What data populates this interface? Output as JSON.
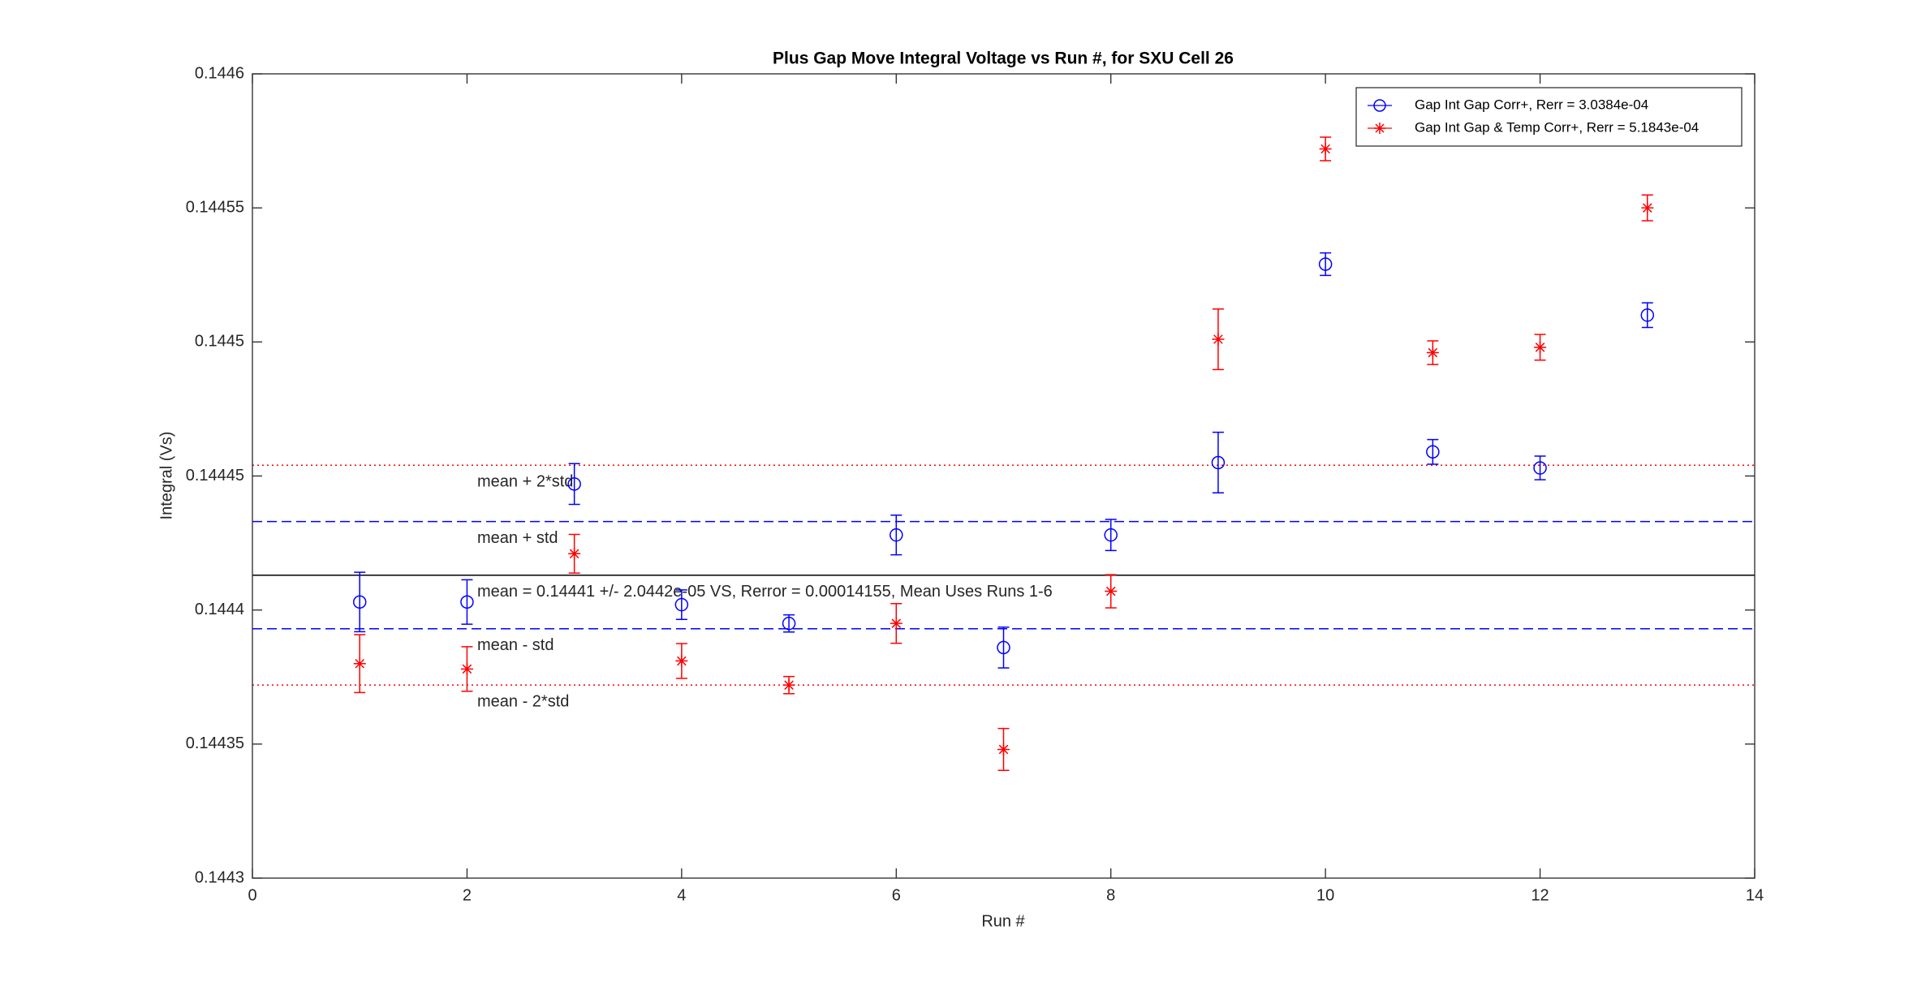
{
  "chart_data": {
    "type": "errorbar",
    "title": "Plus Gap Move Integral Voltage vs Run #, for SXU Cell 26",
    "x_label": "Run #",
    "y_label": "Integral (Vs)",
    "xlim": [
      0,
      14
    ],
    "xticks": [
      0,
      2,
      4,
      6,
      8,
      10,
      12,
      14
    ],
    "ylim": [
      0.1443,
      0.1446
    ],
    "yticks": [
      0.1443,
      0.14435,
      0.1444,
      0.14445,
      0.1445,
      0.14455,
      0.1446
    ],
    "x": [
      1,
      2,
      3,
      4,
      5,
      6,
      7,
      8,
      9,
      10,
      11,
      12,
      13
    ],
    "legend_position": "top-right",
    "series": [
      {
        "name": "Gap Int Gap Corr+, Rerr = 3.0384e-04",
        "color": "#0000ff",
        "marker": "circle",
        "values": [
          0.144403,
          0.144403,
          0.144447,
          0.144402,
          0.144395,
          0.144428,
          0.144386,
          0.144428,
          0.144455,
          0.144529,
          0.144459,
          0.144453,
          0.14451
        ],
        "errors": [
          1.11e-05,
          8.3e-06,
          7.6e-06,
          5.5e-06,
          3.2e-06,
          7.4e-06,
          7.6e-06,
          5.8e-06,
          1.13e-05,
          4.2e-06,
          4.6e-06,
          4.4e-06,
          4.6e-06
        ]
      },
      {
        "name": "Gap Int Gap & Temp  Corr+, Rerr = 5.1843e-04",
        "color": "#ff0000",
        "marker": "asterisk",
        "values": [
          0.14438,
          0.144378,
          0.144421,
          0.144381,
          0.144372,
          0.144395,
          0.144348,
          0.144407,
          0.144501,
          0.144572,
          0.144496,
          0.144498,
          0.14455
        ],
        "errors": [
          1.08e-05,
          8.3e-06,
          7.2e-06,
          6.5e-06,
          3.2e-06,
          7.4e-06,
          7.8e-06,
          6.2e-06,
          1.13e-05,
          4.4e-06,
          4.4e-06,
          4.8e-06,
          4.8e-06
        ]
      }
    ],
    "reference_lines": [
      {
        "label": "mean + 2*std",
        "value": 0.144454,
        "color": "#ff0000",
        "style": "dotted"
      },
      {
        "label": "mean + std",
        "value": 0.144433,
        "color": "#0000ff",
        "style": "dashed"
      },
      {
        "label": "mean = 0.14441 +/- 2.0442e-05 VS, Rerror = 0.00014155, Mean Uses Runs 1-6",
        "value": 0.144413,
        "color": "#000000",
        "style": "solid"
      },
      {
        "label": "mean - std",
        "value": 0.144393,
        "color": "#0000ff",
        "style": "dashed"
      },
      {
        "label": "mean - 2*std",
        "value": 0.144372,
        "color": "#ff0000",
        "style": "dotted"
      }
    ]
  }
}
